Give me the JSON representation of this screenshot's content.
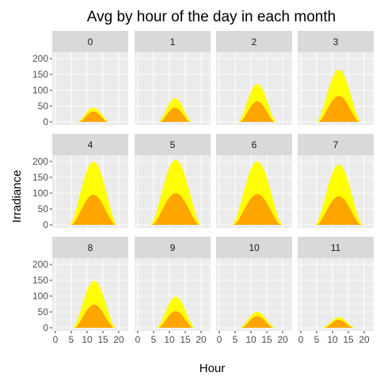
{
  "chart_data": {
    "type": "area",
    "title": "Avg by hour of the day in each month",
    "xlabel": "Hour",
    "ylabel": "Irradiance",
    "xlim": [
      -1,
      23
    ],
    "ylim": [
      -10,
      220
    ],
    "x_ticks": [
      0,
      5,
      10,
      15,
      20
    ],
    "y_ticks": [
      0,
      50,
      100,
      150,
      200
    ],
    "grid": true,
    "layout": "facets 3 rows x 4 columns",
    "series_colors": {
      "upper": "#ffff00",
      "lower": "#ffa500"
    },
    "panels": [
      {
        "label": "0",
        "upper": {
          "start": 7,
          "end": 17,
          "peak": 45
        },
        "lower": {
          "start": 7.5,
          "end": 16.5,
          "peak": 33
        }
      },
      {
        "label": "1",
        "upper": {
          "start": 6.5,
          "end": 17,
          "peak": 75
        },
        "lower": {
          "start": 7,
          "end": 16.5,
          "peak": 45
        }
      },
      {
        "label": "2",
        "upper": {
          "start": 6,
          "end": 18,
          "peak": 120
        },
        "lower": {
          "start": 6.5,
          "end": 17.5,
          "peak": 65
        }
      },
      {
        "label": "3",
        "upper": {
          "start": 5,
          "end": 19,
          "peak": 165
        },
        "lower": {
          "start": 5.5,
          "end": 18.5,
          "peak": 82
        }
      },
      {
        "label": "4",
        "upper": {
          "start": 4.5,
          "end": 19.5,
          "peak": 200
        },
        "lower": {
          "start": 5,
          "end": 19,
          "peak": 95
        }
      },
      {
        "label": "5",
        "upper": {
          "start": 4,
          "end": 20,
          "peak": 205
        },
        "lower": {
          "start": 4.5,
          "end": 19.5,
          "peak": 100
        }
      },
      {
        "label": "6",
        "upper": {
          "start": 4,
          "end": 20,
          "peak": 200
        },
        "lower": {
          "start": 4.5,
          "end": 19.5,
          "peak": 97
        }
      },
      {
        "label": "7",
        "upper": {
          "start": 4.5,
          "end": 19.5,
          "peak": 190
        },
        "lower": {
          "start": 5,
          "end": 19,
          "peak": 90
        }
      },
      {
        "label": "8",
        "upper": {
          "start": 5.5,
          "end": 19,
          "peak": 148
        },
        "lower": {
          "start": 6,
          "end": 18.5,
          "peak": 73
        }
      },
      {
        "label": "9",
        "upper": {
          "start": 6,
          "end": 18,
          "peak": 98
        },
        "lower": {
          "start": 6.5,
          "end": 17.5,
          "peak": 52
        }
      },
      {
        "label": "10",
        "upper": {
          "start": 6.5,
          "end": 17.5,
          "peak": 50
        },
        "lower": {
          "start": 7,
          "end": 17,
          "peak": 37
        }
      },
      {
        "label": "11",
        "upper": {
          "start": 7,
          "end": 17,
          "peak": 33
        },
        "lower": {
          "start": 7.5,
          "end": 16.5,
          "peak": 25
        }
      }
    ]
  }
}
